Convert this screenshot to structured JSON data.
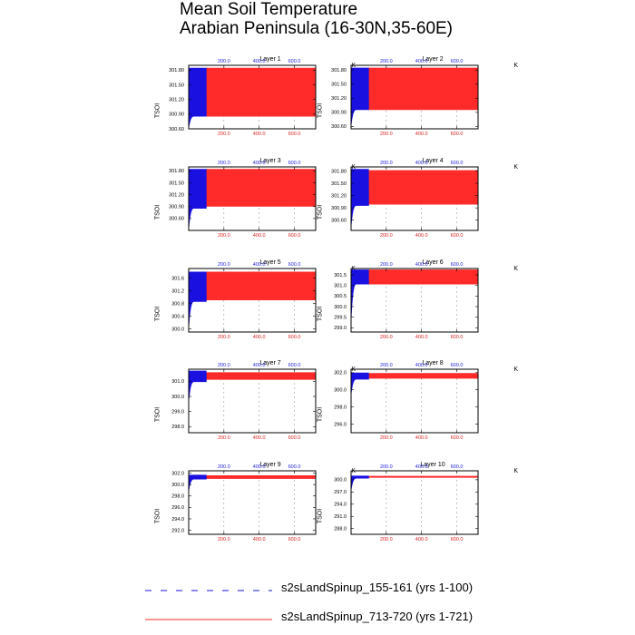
{
  "figure": {
    "title_line1": "Mean Soil Temperature",
    "title_line2": "Arabian Peninsula (16-30N,35-60E)"
  },
  "colors": {
    "series_a": "#1a10e0",
    "series_b": "#ff2a2a",
    "axis": "#000000",
    "grid": "#888888",
    "top_ticks": "#2222dd",
    "bottom_ticks": "#dd2222"
  },
  "chart_data": [
    {
      "type": "line",
      "title": "Layer 1",
      "unit": "K",
      "ylabel": "TSOI",
      "xlim": [
        0,
        721
      ],
      "ylim": [
        300.6,
        301.9
      ],
      "yticks": [
        "300.60",
        "300.90",
        "301.20",
        "301.50",
        "301.80"
      ],
      "xticks": [
        "200.0",
        "400.0",
        "600.0"
      ],
      "series": [
        {
          "name": "s2sLandSpinup_155-161 (yrs 1-100)",
          "x_range": [
            1,
            100
          ],
          "y_low_start": 300.62,
          "y_low": 300.85,
          "y_high": 301.85
        },
        {
          "name": "s2sLandSpinup_713-720 (yrs 1-721)",
          "x_range": [
            100,
            721
          ],
          "y_low": 300.85,
          "y_high": 301.85
        }
      ]
    },
    {
      "type": "line",
      "title": "Layer 2",
      "unit": "K",
      "ylabel": "TSOI",
      "xlim": [
        0,
        721
      ],
      "ylim": [
        300.55,
        301.9
      ],
      "yticks": [
        "300.60",
        "300.90",
        "301.20",
        "301.50",
        "301.80"
      ],
      "xticks": [
        "200.0",
        "400.0",
        "600.0"
      ],
      "series": [
        {
          "name": "s2sLandSpinup_155-161 (yrs 1-100)",
          "x_range": [
            1,
            100
          ],
          "y_low_start": 300.62,
          "y_low": 300.95,
          "y_high": 301.85
        },
        {
          "name": "s2sLandSpinup_713-720 (yrs 1-721)",
          "x_range": [
            100,
            721
          ],
          "y_low": 300.95,
          "y_high": 301.85
        }
      ]
    },
    {
      "type": "line",
      "title": "Layer 3",
      "unit": "K",
      "ylabel": "TSOI",
      "xlim": [
        0,
        721
      ],
      "ylim": [
        300.3,
        301.9
      ],
      "yticks": [
        "300.60",
        "300.90",
        "301.20",
        "301.50",
        "301.80"
      ],
      "xticks": [
        "200.0",
        "400.0",
        "600.0"
      ],
      "series": [
        {
          "name": "s2sLandSpinup_155-161 (yrs 1-100)",
          "x_range": [
            1,
            100
          ],
          "y_low_start": 300.35,
          "y_low": 300.85,
          "y_high": 301.85
        },
        {
          "name": "s2sLandSpinup_713-720 (yrs 1-721)",
          "x_range": [
            100,
            721
          ],
          "y_low": 300.9,
          "y_high": 301.85
        }
      ]
    },
    {
      "type": "line",
      "title": "Layer 4",
      "unit": "K",
      "ylabel": "TSOI",
      "xlim": [
        0,
        721
      ],
      "ylim": [
        300.35,
        301.9
      ],
      "yticks": [
        "300.60",
        "300.90",
        "301.20",
        "301.50",
        "301.80"
      ],
      "xticks": [
        "200.0",
        "400.0",
        "600.0"
      ],
      "series": [
        {
          "name": "s2sLandSpinup_155-161 (yrs 1-100)",
          "x_range": [
            1,
            100
          ],
          "y_low_start": 300.45,
          "y_low": 300.95,
          "y_high": 301.85
        },
        {
          "name": "s2sLandSpinup_713-720 (yrs 1-721)",
          "x_range": [
            100,
            721
          ],
          "y_low": 300.98,
          "y_high": 301.82
        }
      ]
    },
    {
      "type": "line",
      "title": "Layer 5",
      "unit": "K",
      "ylabel": "TSOI",
      "xlim": [
        0,
        721
      ],
      "ylim": [
        299.9,
        301.9
      ],
      "yticks": [
        "300.0",
        "300.4",
        "300.8",
        "301.2",
        "301.6"
      ],
      "xticks": [
        "200.0",
        "400.0",
        "600.0"
      ],
      "series": [
        {
          "name": "s2sLandSpinup_155-161 (yrs 1-100)",
          "x_range": [
            1,
            100
          ],
          "y_low_start": 300.05,
          "y_low": 300.85,
          "y_high": 301.8
        },
        {
          "name": "s2sLandSpinup_713-720 (yrs 1-721)",
          "x_range": [
            100,
            721
          ],
          "y_low": 300.9,
          "y_high": 301.8
        }
      ]
    },
    {
      "type": "line",
      "title": "Layer 6",
      "unit": "K",
      "ylabel": "TSOI",
      "xlim": [
        0,
        721
      ],
      "ylim": [
        298.8,
        301.8
      ],
      "yticks": [
        "299.0",
        "299.5",
        "300.0",
        "300.5",
        "301.0",
        "301.5"
      ],
      "xticks": [
        "200.0",
        "400.0",
        "600.0"
      ],
      "series": [
        {
          "name": "s2sLandSpinup_155-161 (yrs 1-100)",
          "x_range": [
            1,
            100
          ],
          "y_low_start": 299.4,
          "y_low": 301.05,
          "y_high": 301.75
        },
        {
          "name": "s2sLandSpinup_713-720 (yrs 1-721)",
          "x_range": [
            100,
            721
          ],
          "y_low": 301.05,
          "y_high": 301.75
        }
      ]
    },
    {
      "type": "line",
      "title": "Layer 7",
      "unit": "K",
      "ylabel": "TSOI",
      "xlim": [
        0,
        721
      ],
      "ylim": [
        297.6,
        301.8
      ],
      "yticks": [
        "298.0",
        "299.0",
        "300.0",
        "301.0"
      ],
      "xticks": [
        "200.0",
        "400.0",
        "600.0"
      ],
      "series": [
        {
          "name": "s2sLandSpinup_155-161 (yrs 1-100)",
          "x_range": [
            1,
            100
          ],
          "y_low_start": 299.7,
          "y_low": 300.95,
          "y_high": 301.7
        },
        {
          "name": "s2sLandSpinup_713-720 (yrs 1-721)",
          "x_range": [
            100,
            721
          ],
          "y_low": 301.1,
          "y_high": 301.6
        }
      ]
    },
    {
      "type": "line",
      "title": "Layer 8",
      "unit": "K",
      "ylabel": "TSOI",
      "xlim": [
        0,
        721
      ],
      "ylim": [
        295.0,
        302.4
      ],
      "yticks": [
        "296.0",
        "298.0",
        "300.0",
        "302.0"
      ],
      "xticks": [
        "200.0",
        "400.0",
        "600.0"
      ],
      "series": [
        {
          "name": "s2sLandSpinup_155-161 (yrs 1-100)",
          "x_range": [
            1,
            100
          ],
          "y_low_start": 299.5,
          "y_low": 301.2,
          "y_high": 302.0
        },
        {
          "name": "s2sLandSpinup_713-720 (yrs 1-721)",
          "x_range": [
            100,
            721
          ],
          "y_low": 301.3,
          "y_high": 301.95
        }
      ]
    },
    {
      "type": "line",
      "title": "Layer 9",
      "unit": "K",
      "ylabel": "TSOI",
      "xlim": [
        0,
        721
      ],
      "ylim": [
        291.3,
        302.4
      ],
      "yticks": [
        "292.0",
        "294.0",
        "296.0",
        "298.0",
        "300.0",
        "302.0"
      ],
      "xticks": [
        "200.0",
        "400.0",
        "600.0"
      ],
      "series": [
        {
          "name": "s2sLandSpinup_155-161 (yrs 1-100)",
          "x_range": [
            1,
            100
          ],
          "y_low_start": 298.9,
          "y_low": 300.9,
          "y_high": 301.7
        },
        {
          "name": "s2sLandSpinup_713-720 (yrs 1-721)",
          "x_range": [
            100,
            721
          ],
          "y_low": 301.0,
          "y_high": 301.6
        }
      ]
    },
    {
      "type": "line",
      "title": "Layer 10",
      "unit": "K",
      "ylabel": "TSOI",
      "xlim": [
        0,
        721
      ],
      "ylim": [
        286.6,
        302.2
      ],
      "yticks": [
        "288.0",
        "291.0",
        "294.0",
        "297.0",
        "300.0"
      ],
      "xticks": [
        "200.0",
        "400.0",
        "600.0"
      ],
      "series": [
        {
          "name": "s2sLandSpinup_155-161 (yrs 1-100)",
          "x_range": [
            1,
            100
          ],
          "y_low_start": 297.5,
          "y_low": 300.3,
          "y_high": 301.0
        },
        {
          "name": "s2sLandSpinup_713-720 (yrs 1-721)",
          "x_range": [
            100,
            721
          ],
          "y_low": 300.5,
          "y_high": 300.95
        }
      ]
    }
  ],
  "legend": [
    {
      "label": "s2sLandSpinup_155-161 (yrs 1-100)",
      "style": "dashed",
      "color": "#1a10e0"
    },
    {
      "label": "s2sLandSpinup_713-720 (yrs 1-721)",
      "style": "solid",
      "color": "#ff2a2a"
    }
  ]
}
